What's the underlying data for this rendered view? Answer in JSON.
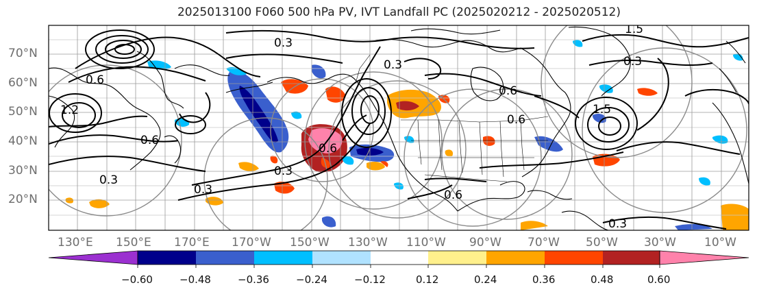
{
  "title": "2025013100 F060 500 hPa PV, IVT Landfall PC (2025020212 - 2025020512)",
  "lat_labels": [
    "70°N",
    "60°N",
    "50°N",
    "40°N",
    "30°N",
    "20°N"
  ],
  "lon_labels": [
    "130°E",
    "150°E",
    "170°E",
    "170°W",
    "150°W",
    "130°W",
    "110°W",
    "90°W",
    "70°W",
    "50°W",
    "30°W",
    "10°W"
  ],
  "contour_labels": [
    "0.3",
    "0.6",
    "1.2",
    "0.3",
    "0.6",
    "0.6",
    "0.3",
    "0.3",
    "0.3",
    "0.6",
    "0.6",
    "1.5",
    "0.3",
    "1.5",
    "0.3",
    "0.6"
  ],
  "colorbar": {
    "ticks": [
      "−0.60",
      "−0.48",
      "−0.36",
      "−0.24",
      "−0.12",
      "0.12",
      "0.24",
      "0.36",
      "0.48",
      "0.60"
    ],
    "colors": [
      "#9b30d0",
      "#00008b",
      "#3a5fcd",
      "#00bfff",
      "#b0e2ff",
      "#ffffff",
      "#fff08c",
      "#ffa500",
      "#ff4500",
      "#b22222",
      "#ff82ab"
    ]
  }
}
